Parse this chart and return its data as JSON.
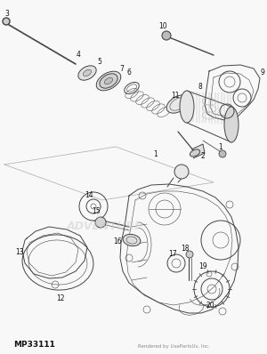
{
  "bg_color": "#f8f8f8",
  "line_color": "#444444",
  "light_line": "#888888",
  "label_color": "#111111",
  "title_bottom": "MP33111",
  "watermark": "Rendered by UsePartsUs, Inc.",
  "fig_w": 3.0,
  "fig_h": 3.98,
  "dpi": 100
}
